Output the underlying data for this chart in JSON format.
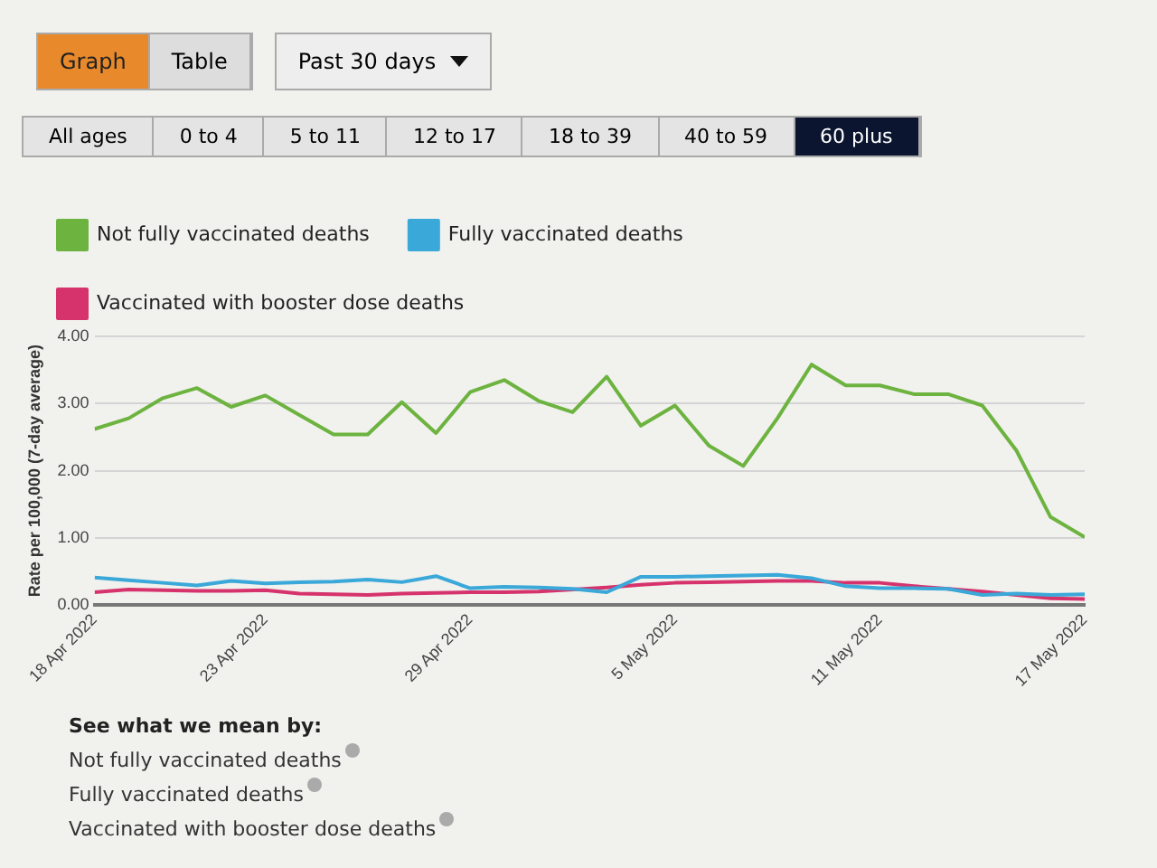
{
  "chart_data": {
    "type": "line",
    "ylabel": "Rate per 100,000 (7-day average)",
    "x": [
      "2022-04-18",
      "2022-04-19",
      "2022-04-20",
      "2022-04-21",
      "2022-04-22",
      "2022-04-23",
      "2022-04-24",
      "2022-04-25",
      "2022-04-26",
      "2022-04-27",
      "2022-04-28",
      "2022-04-29",
      "2022-04-30",
      "2022-05-01",
      "2022-05-02",
      "2022-05-03",
      "2022-05-04",
      "2022-05-05",
      "2022-05-06",
      "2022-05-07",
      "2022-05-08",
      "2022-05-09",
      "2022-05-10",
      "2022-05-11",
      "2022-05-12",
      "2022-05-13",
      "2022-05-14",
      "2022-05-15",
      "2022-05-16",
      "2022-05-17"
    ],
    "series": [
      {
        "name": "Not fully vaccinated deaths",
        "color": "#6db33f",
        "values": [
          2.62,
          2.78,
          3.08,
          3.23,
          2.95,
          3.12,
          2.83,
          2.54,
          2.54,
          3.02,
          2.56,
          3.17,
          3.35,
          3.04,
          2.87,
          3.4,
          2.67,
          2.97,
          2.37,
          2.07,
          2.78,
          3.58,
          3.27,
          3.27,
          3.14,
          3.14,
          2.97,
          2.3,
          1.31,
          1.01
        ]
      },
      {
        "name": "Fully vaccinated deaths",
        "color": "#3aa8d8",
        "values": [
          0.41,
          0.37,
          0.33,
          0.29,
          0.36,
          0.32,
          0.34,
          0.35,
          0.38,
          0.34,
          0.43,
          0.25,
          0.27,
          0.26,
          0.24,
          0.19,
          0.42,
          0.42,
          0.43,
          0.44,
          0.45,
          0.4,
          0.28,
          0.25,
          0.25,
          0.24,
          0.15,
          0.17,
          0.15,
          0.16
        ]
      },
      {
        "name": "Vaccinated with booster dose deaths",
        "color": "#d6336c",
        "values": [
          0.19,
          0.23,
          0.22,
          0.21,
          0.21,
          0.22,
          0.17,
          0.16,
          0.15,
          0.17,
          0.18,
          0.19,
          0.19,
          0.2,
          0.23,
          0.26,
          0.3,
          0.33,
          0.34,
          0.35,
          0.36,
          0.36,
          0.33,
          0.33,
          0.28,
          0.24,
          0.2,
          0.15,
          0.1,
          0.09
        ]
      }
    ],
    "xlim": [
      "2022-04-18",
      "2022-05-17"
    ],
    "xticks": [
      {
        "value": "2022-04-18",
        "label": "18 Apr 2022"
      },
      {
        "value": "2022-04-23",
        "label": "23 Apr 2022"
      },
      {
        "value": "2022-04-29",
        "label": "29 Apr 2022"
      },
      {
        "value": "2022-05-05",
        "label": "5 May 2022"
      },
      {
        "value": "2022-05-11",
        "label": "11 May 2022"
      },
      {
        "value": "2022-05-17",
        "label": "17 May 2022"
      }
    ],
    "ylim": [
      0,
      4
    ],
    "yticks": [
      {
        "value": 0,
        "label": "0.00"
      },
      {
        "value": 1,
        "label": "1.00"
      },
      {
        "value": 2,
        "label": "2.00"
      },
      {
        "value": 3,
        "label": "3.00"
      },
      {
        "value": 4,
        "label": "4.00"
      }
    ],
    "grid": "y",
    "legend": "top left",
    "marker": "none",
    "line_style": "solid",
    "annotations": [
      "Graph",
      "Table",
      "Past 30 days",
      "All ages",
      "0 to 4",
      "5 to 11",
      "12 to 17",
      "18 to 39",
      "40 to 59",
      "60 plus",
      "See what we mean by:",
      "Not fully vaccinated deaths",
      "Fully vaccinated deaths",
      "Vaccinated with booster dose deaths"
    ]
  }
}
